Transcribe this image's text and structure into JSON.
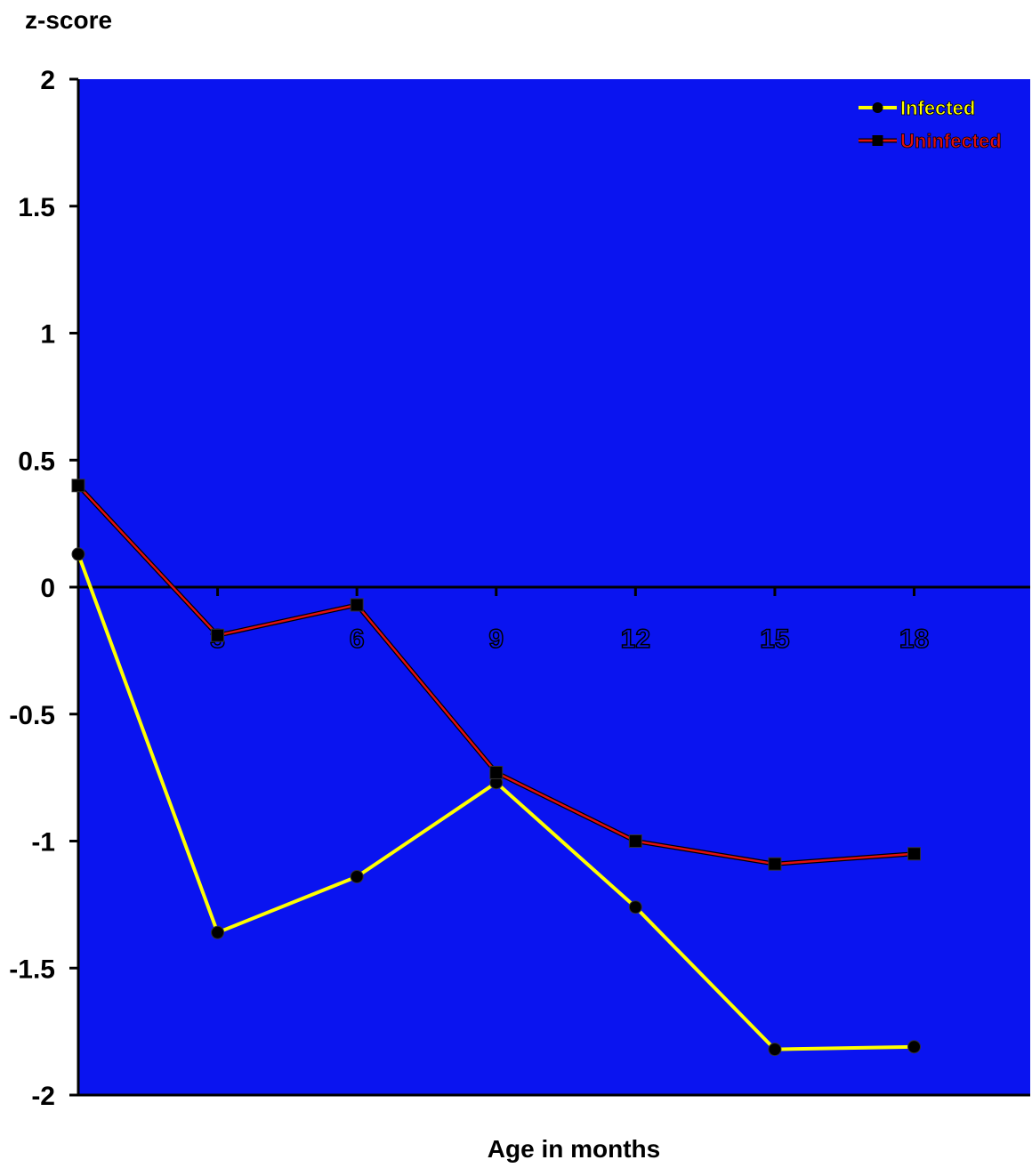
{
  "chart_data": {
    "type": "line",
    "title": "",
    "ylabel": "z-score",
    "xlabel": "Age in months",
    "x": [
      0,
      3,
      6,
      9,
      12,
      15,
      18
    ],
    "xticks": [
      3,
      6,
      9,
      12,
      15,
      18
    ],
    "xlim": [
      0,
      20.5
    ],
    "ylim": [
      -2,
      2
    ],
    "yticks": [
      -2,
      -1.5,
      -1,
      -0.5,
      0,
      0.5,
      1,
      1.5,
      2
    ],
    "grid": false,
    "legend_position": "top-right",
    "series": [
      {
        "name": "Infected",
        "color": "#ffff00",
        "marker": "circle",
        "values": [
          0.13,
          -1.36,
          -1.14,
          -0.77,
          -1.26,
          -1.82,
          -1.81
        ]
      },
      {
        "name": "Uninfected",
        "color": "#e01010",
        "marker": "square",
        "values": [
          0.4,
          -0.19,
          -0.07,
          -0.73,
          -1.0,
          -1.09,
          -1.05
        ]
      }
    ],
    "colors": {
      "plot_background": "#0a14f0",
      "axis": "#000000",
      "zero_line": "#000000",
      "marker_fill": "#000000"
    }
  }
}
